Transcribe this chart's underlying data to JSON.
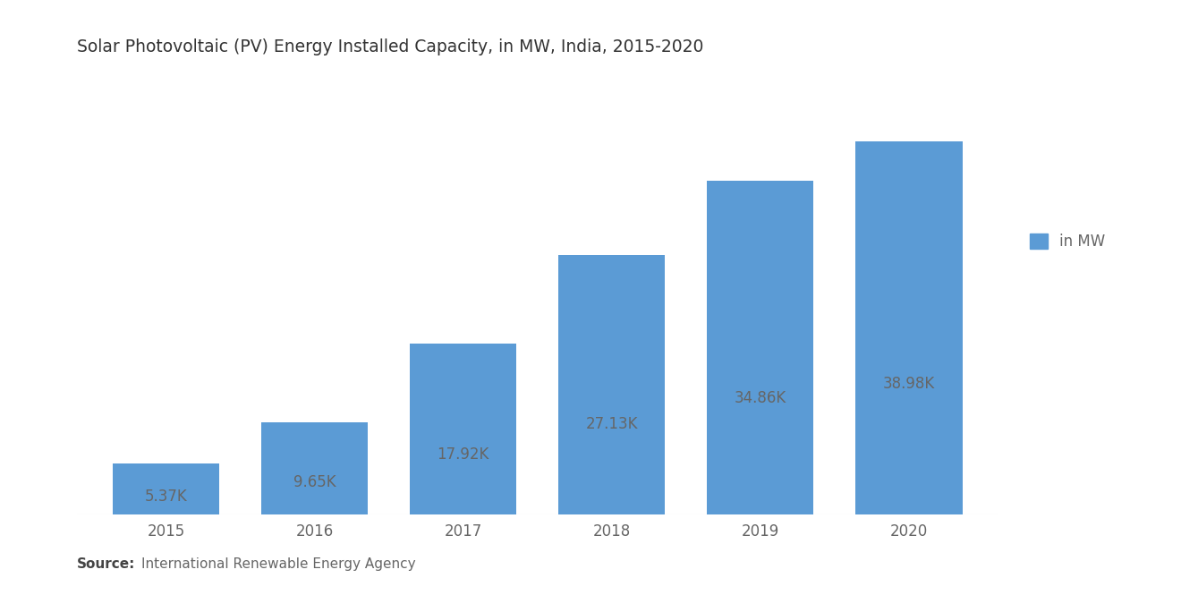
{
  "title": "Solar Photovoltaic (PV) Energy Installed Capacity, in MW, India, 2015-2020",
  "categories": [
    "2015",
    "2016",
    "2017",
    "2018",
    "2019",
    "2020"
  ],
  "values": [
    5370,
    9650,
    17920,
    27130,
    34860,
    38980
  ],
  "labels": [
    "5.37K",
    "9.65K",
    "17.92K",
    "27.13K",
    "34.86K",
    "38.98K"
  ],
  "bar_color": "#5B9BD5",
  "background_color": "#FFFFFF",
  "label_color": "#666666",
  "title_color": "#333333",
  "legend_label": "in MW",
  "source_bold": "Source:",
  "source_text": "International Renewable Energy Agency",
  "title_fontsize": 13.5,
  "label_fontsize": 12,
  "tick_fontsize": 12,
  "legend_fontsize": 12,
  "source_fontsize": 11,
  "ylim": [
    0,
    46000
  ],
  "bar_width": 0.72
}
